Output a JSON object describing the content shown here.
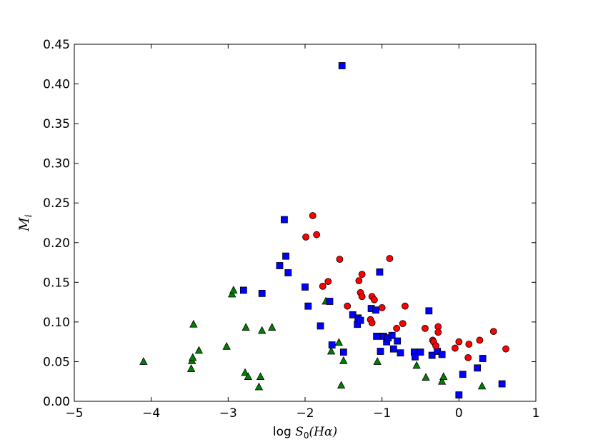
{
  "chart_data": {
    "type": "scatter",
    "title": "",
    "xlabel_prefix": "log ",
    "xlabel_math": "S",
    "xlabel_sub": "0",
    "xlabel_suffix": "(Hα)",
    "ylabel_math": "M",
    "ylabel_sub": "i",
    "xlim": [
      -5,
      1
    ],
    "ylim": [
      0.0,
      0.45
    ],
    "xticks": [
      -5,
      -4,
      -3,
      -2,
      -1,
      0,
      1
    ],
    "xtick_labels": [
      "−5",
      "−4",
      "−3",
      "−2",
      "−1",
      "0",
      "1"
    ],
    "yticks": [
      0.0,
      0.05,
      0.1,
      0.15,
      0.2,
      0.25,
      0.3,
      0.35,
      0.4,
      0.45
    ],
    "ytick_labels": [
      "0.00",
      "0.05",
      "0.10",
      "0.15",
      "0.20",
      "0.25",
      "0.30",
      "0.35",
      "0.40",
      "0.45"
    ],
    "grid": false,
    "legend": false,
    "series": [
      {
        "marker": "triangle",
        "color": "#008000",
        "points": [
          [
            -4.1,
            0.05
          ],
          [
            -3.48,
            0.041
          ],
          [
            -3.47,
            0.051
          ],
          [
            -3.46,
            0.055
          ],
          [
            -3.45,
            0.097
          ],
          [
            -3.38,
            0.064
          ],
          [
            -3.02,
            0.069
          ],
          [
            -2.95,
            0.135
          ],
          [
            -2.93,
            0.14
          ],
          [
            -2.78,
            0.036
          ],
          [
            -2.77,
            0.093
          ],
          [
            -2.74,
            0.031
          ],
          [
            -2.6,
            0.018
          ],
          [
            -2.58,
            0.031
          ],
          [
            -2.56,
            0.089
          ],
          [
            -2.43,
            0.093
          ],
          [
            -1.73,
            0.126
          ],
          [
            -1.66,
            0.063
          ],
          [
            -1.56,
            0.074
          ],
          [
            -1.53,
            0.02
          ],
          [
            -1.5,
            0.051
          ],
          [
            -1.06,
            0.05
          ],
          [
            -0.55,
            0.045
          ],
          [
            -0.43,
            0.03
          ],
          [
            -0.22,
            0.025
          ],
          [
            -0.2,
            0.031
          ],
          [
            0.3,
            0.019
          ]
        ]
      },
      {
        "marker": "square",
        "color": "#0000ff",
        "points": [
          [
            -1.52,
            0.423
          ],
          [
            -2.27,
            0.229
          ],
          [
            -2.25,
            0.183
          ],
          [
            -2.22,
            0.162
          ],
          [
            -2.33,
            0.171
          ],
          [
            -2.8,
            0.14
          ],
          [
            -2.56,
            0.136
          ],
          [
            -2.0,
            0.144
          ],
          [
            -1.96,
            0.12
          ],
          [
            -1.8,
            0.095
          ],
          [
            -1.68,
            0.126
          ],
          [
            -1.65,
            0.071
          ],
          [
            -1.5,
            0.062
          ],
          [
            -1.38,
            0.109
          ],
          [
            -1.32,
            0.097
          ],
          [
            -1.31,
            0.105
          ],
          [
            -1.28,
            0.102
          ],
          [
            -1.14,
            0.117
          ],
          [
            -1.08,
            0.115
          ],
          [
            -1.07,
            0.082
          ],
          [
            -1.03,
            0.163
          ],
          [
            -1.02,
            0.063
          ],
          [
            -0.98,
            0.082
          ],
          [
            -0.94,
            0.075
          ],
          [
            -0.92,
            0.08
          ],
          [
            -0.87,
            0.083
          ],
          [
            -0.85,
            0.066
          ],
          [
            -0.8,
            0.076
          ],
          [
            -0.76,
            0.061
          ],
          [
            -0.58,
            0.062
          ],
          [
            -0.57,
            0.056
          ],
          [
            -0.5,
            0.062
          ],
          [
            -0.39,
            0.114
          ],
          [
            -0.35,
            0.058
          ],
          [
            -0.28,
            0.063
          ],
          [
            -0.22,
            0.059
          ],
          [
            0.0,
            0.008
          ],
          [
            0.05,
            0.034
          ],
          [
            0.24,
            0.042
          ],
          [
            0.31,
            0.054
          ],
          [
            0.56,
            0.022
          ]
        ]
      },
      {
        "marker": "circle",
        "color": "#ff0000",
        "points": [
          [
            -1.9,
            0.234
          ],
          [
            -1.99,
            0.207
          ],
          [
            -1.85,
            0.21
          ],
          [
            -1.55,
            0.179
          ],
          [
            -0.9,
            0.18
          ],
          [
            -1.77,
            0.145
          ],
          [
            -1.7,
            0.151
          ],
          [
            -1.3,
            0.152
          ],
          [
            -1.26,
            0.16
          ],
          [
            -1.45,
            0.12
          ],
          [
            -1.28,
            0.137
          ],
          [
            -1.26,
            0.132
          ],
          [
            -1.13,
            0.132
          ],
          [
            -1.1,
            0.128
          ],
          [
            -1.15,
            0.103
          ],
          [
            -1.13,
            0.099
          ],
          [
            -1.0,
            0.118
          ],
          [
            -0.81,
            0.092
          ],
          [
            -0.73,
            0.098
          ],
          [
            -0.7,
            0.12
          ],
          [
            -0.44,
            0.092
          ],
          [
            -0.34,
            0.077
          ],
          [
            -0.33,
            0.075
          ],
          [
            -0.3,
            0.07
          ],
          [
            -0.27,
            0.094
          ],
          [
            -0.27,
            0.087
          ],
          [
            -0.05,
            0.067
          ],
          [
            0.0,
            0.075
          ],
          [
            0.12,
            0.055
          ],
          [
            0.13,
            0.072
          ],
          [
            0.27,
            0.077
          ],
          [
            0.45,
            0.088
          ],
          [
            0.61,
            0.066
          ]
        ]
      }
    ]
  }
}
